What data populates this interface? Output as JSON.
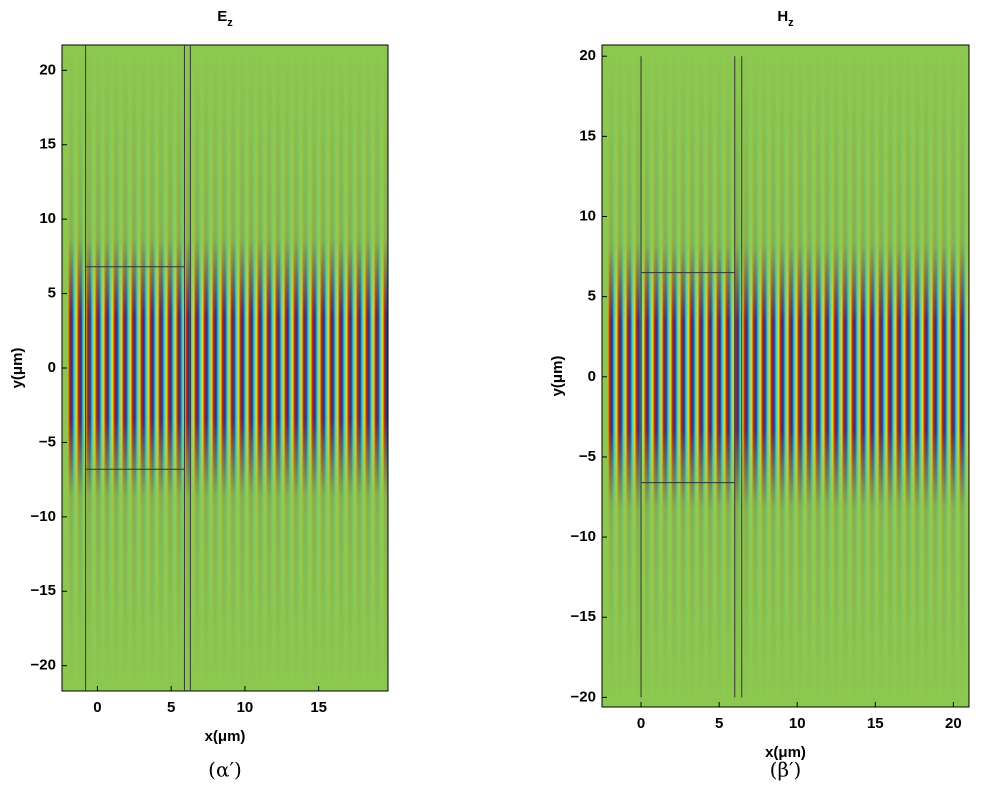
{
  "chart_data": [
    {
      "type": "heatmap",
      "title": "E",
      "title_subscript": "z",
      "xlabel": "x(μm)",
      "ylabel": "y(μm)",
      "caption": "(α′)",
      "xlim": [
        -2.4,
        19.7
      ],
      "ylim": [
        -21.7,
        21.7
      ],
      "xticks": [
        0,
        5,
        10,
        15
      ],
      "yticks": [
        {
          "value": -20,
          "label": "−20"
        },
        {
          "value": -15,
          "label": "−15"
        },
        {
          "value": -10,
          "label": "−10"
        },
        {
          "value": -5,
          "label": "−5"
        },
        0,
        5,
        10,
        15,
        20
      ],
      "outlines": [
        {
          "x": [
            -0.8,
            -0.8
          ],
          "y": [
            21.7,
            -21.7
          ]
        },
        {
          "x": [
            5.9,
            5.9
          ],
          "y": [
            21.7,
            -21.7
          ]
        },
        {
          "x": [
            6.3,
            6.3
          ],
          "y": [
            21.7,
            -21.7
          ]
        },
        {
          "x": [
            -0.8,
            5.9
          ],
          "y": [
            6.8,
            6.8
          ]
        },
        {
          "x": [
            -0.8,
            5.9
          ],
          "y": [
            -6.8,
            -6.8
          ]
        }
      ]
    },
    {
      "type": "heatmap",
      "title": "H",
      "title_subscript": "z",
      "xlabel": "x(μm)",
      "ylabel": "y(μm)",
      "caption": "(β′)",
      "xlim": [
        -2.5,
        21.0
      ],
      "ylim": [
        -20.6,
        20.7
      ],
      "xticks": [
        0,
        5,
        10,
        15,
        20
      ],
      "yticks": [
        {
          "value": -20,
          "label": "−20"
        },
        {
          "value": -15,
          "label": "−15"
        },
        {
          "value": -10,
          "label": "−10"
        },
        {
          "value": -5,
          "label": "−5"
        },
        0,
        5,
        10,
        15,
        20
      ],
      "outlines": [
        {
          "x": [
            0,
            0
          ],
          "y": [
            20,
            -20
          ]
        },
        {
          "x": [
            6.0,
            6.0
          ],
          "y": [
            20,
            -20
          ]
        },
        {
          "x": [
            6.45,
            6.45
          ],
          "y": [
            20,
            -20
          ]
        },
        {
          "x": [
            0,
            6.0
          ],
          "y": [
            6.5,
            6.5
          ]
        },
        {
          "x": [
            0,
            6.0
          ],
          "y": [
            -6.6,
            -6.6
          ]
        }
      ]
    }
  ]
}
